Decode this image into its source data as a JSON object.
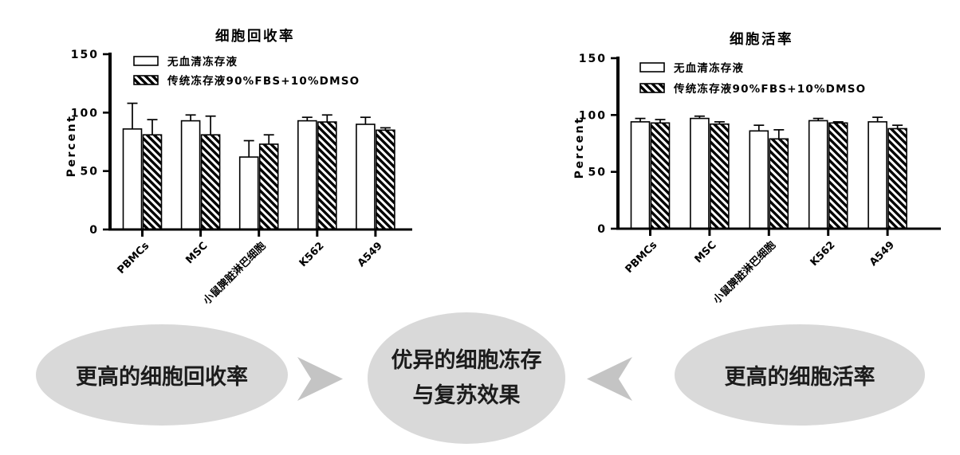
{
  "ink_color": "#000000",
  "chart_data": [
    {
      "type": "bar",
      "title": "细胞回收率",
      "ylabel": "Percent",
      "ylim": [
        0,
        150
      ],
      "yticks": [
        0,
        50,
        100,
        150
      ],
      "grid": false,
      "legend_position": "top-left-inside",
      "categories": [
        "PBMCs",
        "MSC",
        "小鼠脾脏淋巴细胞",
        "K562",
        "A549"
      ],
      "series": [
        {
          "name": "无血清冻存液",
          "pattern": "open",
          "values": [
            86,
            93,
            62,
            93,
            90
          ],
          "errors_plus": [
            22,
            5,
            14,
            3,
            6
          ]
        },
        {
          "name": "传统冻存液90%FBS+10%DMSO",
          "pattern": "hatched",
          "values": [
            81,
            81,
            73,
            92,
            85
          ],
          "errors_plus": [
            13,
            16,
            8,
            6,
            2
          ]
        }
      ]
    },
    {
      "type": "bar",
      "title": "细胞活率",
      "ylabel": "Percent",
      "ylim": [
        0,
        150
      ],
      "yticks": [
        0,
        50,
        100,
        150
      ],
      "grid": false,
      "legend_position": "top-left-inside",
      "categories": [
        "PBMCs",
        "MSC",
        "小鼠脾脏淋巴细胞",
        "K562",
        "A549"
      ],
      "series": [
        {
          "name": "无血清冻存液",
          "pattern": "open",
          "values": [
            94,
            97,
            86,
            95,
            94
          ],
          "errors_plus": [
            3,
            2,
            5,
            2,
            4
          ]
        },
        {
          "name": "传统冻存液90%FBS+10%DMSO",
          "pattern": "hatched",
          "values": [
            93,
            92,
            79,
            93,
            88
          ],
          "errors_plus": [
            3,
            2,
            8,
            1,
            3
          ]
        }
      ]
    }
  ],
  "flow": {
    "left_bubble": "更高的细胞回收率",
    "center_line1": "优异的细胞冻存",
    "center_line2": "与复苏效果",
    "right_bubble": "更高的细胞活率",
    "bubble_color": "#d9d9d9",
    "arrow_color": "#c4c4c4",
    "text_color": "#1c1c1c"
  }
}
